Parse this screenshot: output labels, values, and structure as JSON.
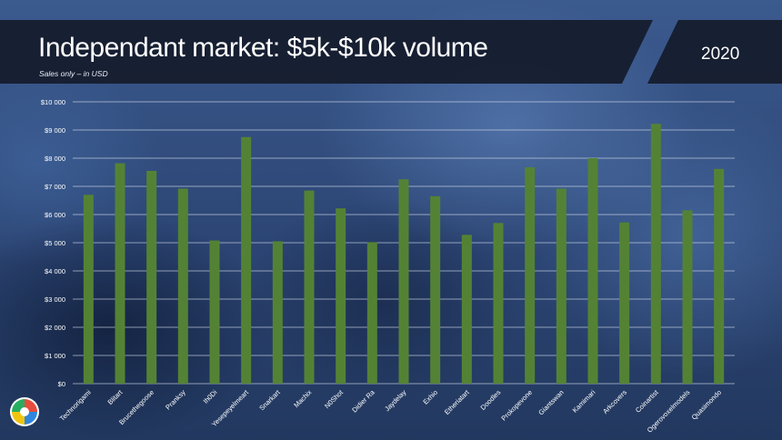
{
  "header": {
    "title": "Independant market: $5k-$10k volume",
    "subtitle": "Sales only – in USD",
    "year": "2020"
  },
  "colors": {
    "bar": "#548235",
    "header_band": "#141b2b",
    "grid": "#d0d8e6",
    "text": "#ffffff"
  },
  "chart_data": {
    "type": "bar",
    "categories": [
      "Technorigami",
      "Blitart",
      "Brucethegoose",
      "Pranksy",
      "Ih0Di",
      "Yesepeyelmeart",
      "Snarkart",
      "Machix",
      "N0Shot",
      "Didier Ra",
      "Jaydelay",
      "Exhio",
      "Etheriatart",
      "Doodles",
      "Prokopevone",
      "Giantswan",
      "Kamimari",
      "Arkcovers",
      "Coinartist",
      "Ogerovoxelmodels",
      "Quasimondo"
    ],
    "values": [
      6700,
      7820,
      7550,
      6920,
      5080,
      8750,
      5050,
      6850,
      6220,
      5020,
      7250,
      6650,
      5280,
      5700,
      7680,
      6920,
      8000,
      5720,
      9220,
      6150,
      7620
    ],
    "y_ticks": [
      "$0",
      "$1 000",
      "$2 000",
      "$3 000",
      "$4 000",
      "$5 000",
      "$6 000",
      "$7 000",
      "$8 000",
      "$9 000",
      "$10 000"
    ],
    "ylim": [
      0,
      10000
    ],
    "grid": true,
    "legend": "none"
  }
}
